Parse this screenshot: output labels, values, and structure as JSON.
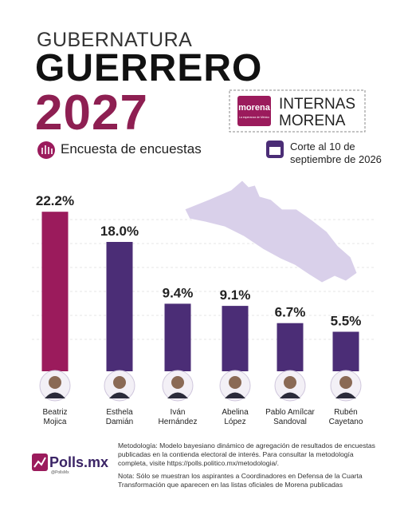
{
  "chart_data": {
    "type": "bar",
    "kicker": "GUBERNATURA",
    "title": "GUERRERO",
    "year": "2027",
    "subtitle": "Encuesta de encuestas",
    "party_logo": "morena",
    "party_tagline": "La esperanza de México",
    "badge": "INTERNAS MORENA",
    "cutoff": "Corte al 10 de\nseptiembre de 2026",
    "categories": [
      "Beatriz\nMojica",
      "Esthela\nDamián",
      "Iván\nHernández",
      "Abelina\nLópez",
      "Pablo Amílcar\nSandoval",
      "Rubén\nCayetano"
    ],
    "values": [
      22.2,
      18.0,
      9.4,
      9.1,
      6.7,
      5.5
    ],
    "value_labels": [
      "22.2%",
      "18.0%",
      "9.4%",
      "9.1%",
      "6.7%",
      "5.5%"
    ],
    "colors": [
      "#9b1b5c",
      "#4b2d76",
      "#4b2d76",
      "#4b2d76",
      "#4b2d76",
      "#4b2d76"
    ],
    "brand": "Polls.mx",
    "brand_handle": "@PollsMx",
    "methodology": "Metodología: Modelo bayesiano dinámico de agregación de resultados de encuestas publicadas en la contienda electoral de interés. Para consultar la metodología completa, visite https://polls.politico.mx/metodologia/.",
    "note": "Nota: Sólo se muestran los aspirantes a Coordinadores en Defensa de la Cuarta Transformación que aparecen en las listas oficiales de Morena publicadas"
  }
}
